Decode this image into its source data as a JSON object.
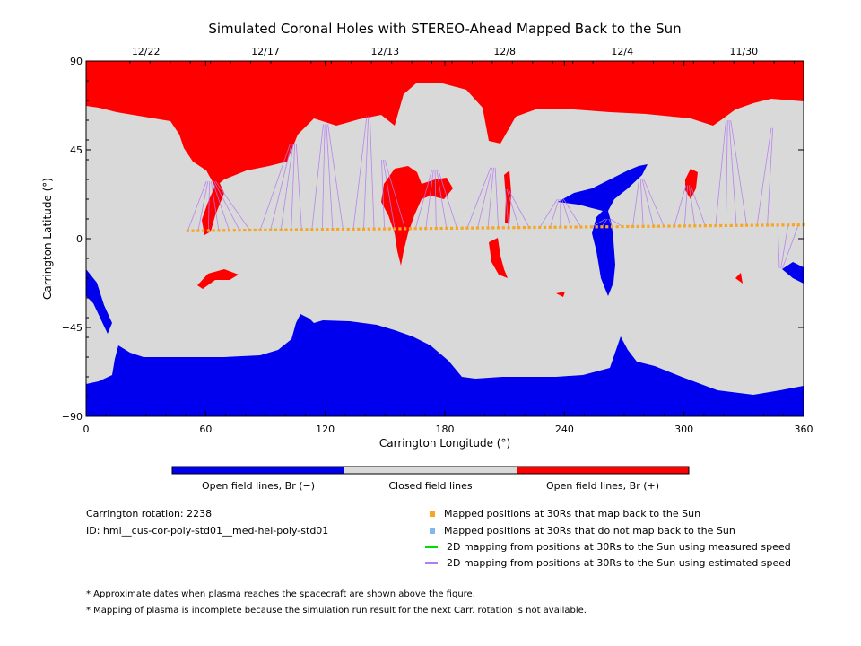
{
  "chart_data": {
    "type": "map",
    "title": "Simulated Coronal Holes with STEREO-Ahead Mapped Back to the Sun",
    "xlabel": "Carrington Longitude (°)",
    "ylabel": "Carrington Latitude (°)",
    "xlim": [
      0,
      360
    ],
    "ylim": [
      -90,
      90
    ],
    "x_ticks": [
      0,
      60,
      120,
      180,
      240,
      300,
      360
    ],
    "y_ticks": [
      -90,
      -45,
      0,
      45,
      90
    ],
    "x_tick_labels": [
      "0",
      "60",
      "120",
      "180",
      "240",
      "300",
      "360"
    ],
    "y_tick_labels": [
      "−90",
      "−45",
      "0",
      "45",
      "90"
    ],
    "top_dates": [
      {
        "label": "12/22",
        "lon": 30
      },
      {
        "label": "12/17",
        "lon": 90
      },
      {
        "label": "12/13",
        "lon": 150
      },
      {
        "label": "12/8",
        "lon": 210
      },
      {
        "label": "12/4",
        "lon": 269
      },
      {
        "label": "11/30",
        "lon": 330
      }
    ],
    "colorbar": [
      {
        "label": "Open field lines, Br (−)",
        "color": "#0000ee"
      },
      {
        "label": "Closed field lines",
        "color": "#d9d9d9"
      },
      {
        "label": "Open field lines, Br (+)",
        "color": "#ff0000"
      }
    ],
    "mapped_positions": {
      "lon_start": 51,
      "lon_end": 360,
      "lat_start": 4,
      "lat_end": 7,
      "color": "#f5a623"
    },
    "mapping_line_color": "#b57cf0",
    "colors": {
      "positive": "#ff0000",
      "negative": "#0000ee",
      "closed": "#d9d9d9",
      "mapped": "#f5a623",
      "unmapped": "#7fb8ee",
      "measured": "#00dd00",
      "estimated": "#b57cf0"
    }
  },
  "info": {
    "rotation": "Carrington rotation: 2238",
    "id": "ID: hmi__cus-cor-poly-std01__med-hel-poly-std01"
  },
  "legend": {
    "mapped": "Mapped positions at 30Rs that map back to the Sun",
    "unmapped": "Mapped positions at 30Rs that do not map back to the Sun",
    "measured": "2D mapping from positions at 30Rs to the Sun using measured speed",
    "estimated": "2D mapping from positions at 30Rs to the Sun using estimated speed"
  },
  "notes": {
    "note1": "* Approximate dates when plasma reaches the spacecraft are shown above the figure.",
    "note2": "* Mapping of plasma is incomplete because the simulation run result for the next Carr. rotation is not available."
  }
}
